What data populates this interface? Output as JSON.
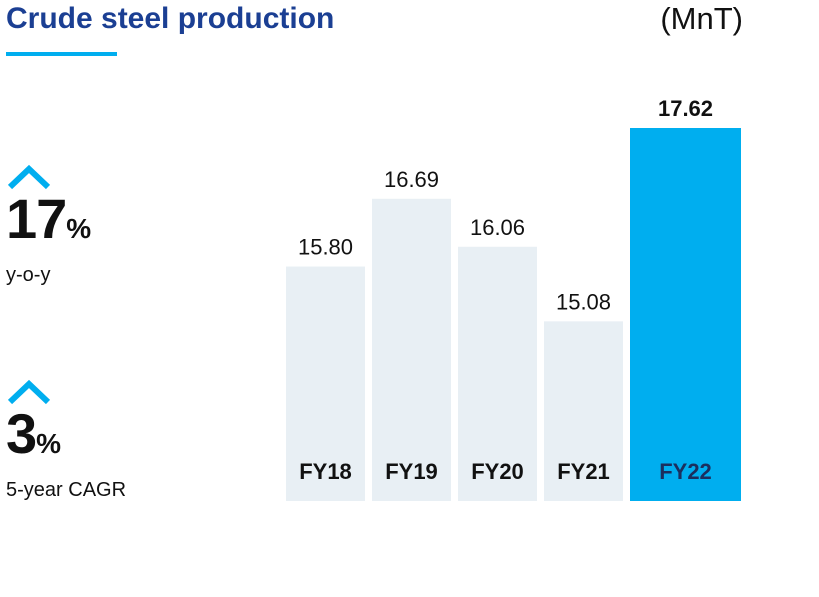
{
  "header": {
    "title": "Crude steel production",
    "unit": "(MnT)"
  },
  "stats": [
    {
      "value": "17",
      "suffix": "%",
      "caption": "y-o-y",
      "icon": "chevron-up-icon"
    },
    {
      "value": "3",
      "suffix": "%",
      "caption": "5-year CAGR",
      "icon": "chevron-up-icon"
    }
  ],
  "colors": {
    "title": "#1b3f93",
    "accent": "#00aeef",
    "bar_default": "#e8eff4",
    "bar_highlight": "#00aeef",
    "text": "#111111"
  },
  "chart_data": {
    "type": "bar",
    "categories": [
      "FY18",
      "FY19",
      "FY20",
      "FY21",
      "FY22"
    ],
    "values": [
      15.8,
      16.69,
      16.06,
      15.08,
      17.62
    ],
    "value_labels": [
      "15.80",
      "16.69",
      "16.06",
      "15.08",
      "17.62"
    ],
    "highlight_index": 4,
    "ylim": [
      12.72,
      17.62
    ],
    "grid": false,
    "legend": "none"
  }
}
